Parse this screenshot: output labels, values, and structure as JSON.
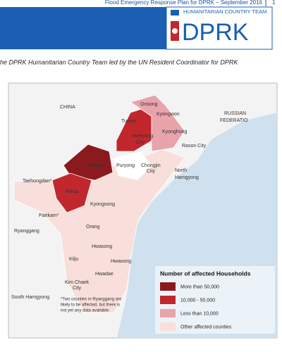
{
  "header": {
    "title": "Flood Emergency Response Plan for DPRK – September 2016",
    "page": "1"
  },
  "logo": {
    "team": "HUMANITARIAN COUNTRY TEAM",
    "name": "DPRK"
  },
  "subtitle": "he DPRK Humanitarian Country Team led by the UN Resident Coordinator for DPRK",
  "map": {
    "labels": [
      "CHINA",
      "RUSSIAN",
      "FEDERATIO",
      "Tumen",
      "Onsong",
      "Kyongwon",
      "Hoeryong",
      "City",
      "Kyonghung",
      "Rason City",
      "Musan",
      "Puryong",
      "Chongjin",
      "City",
      "North",
      "Hamgyong",
      "Taehongdan*",
      "Yonsa",
      "Kyongsong",
      "Paekam*",
      "Ryanggang",
      "Orang",
      "Hwasong",
      "Kilju",
      "Hwasong",
      "Hwadae",
      "Kim Chaek",
      "City",
      "South Hamgyong"
    ]
  },
  "legend": {
    "title": "Number of affected Households",
    "items": [
      {
        "label": "More than 50,000",
        "color": "#8b1a1e"
      },
      {
        "label": "10,000 - 50,000",
        "color": "#c1272d"
      },
      {
        "label": "Less than 10,000",
        "color": "#e9a3ab"
      },
      {
        "label": "Other affected counties",
        "color": "#f8dfdb"
      }
    ]
  },
  "footnote": [
    "*Two counties in Ryanggang are",
    "likely to be affected, but there is",
    "not yet any data available."
  ]
}
